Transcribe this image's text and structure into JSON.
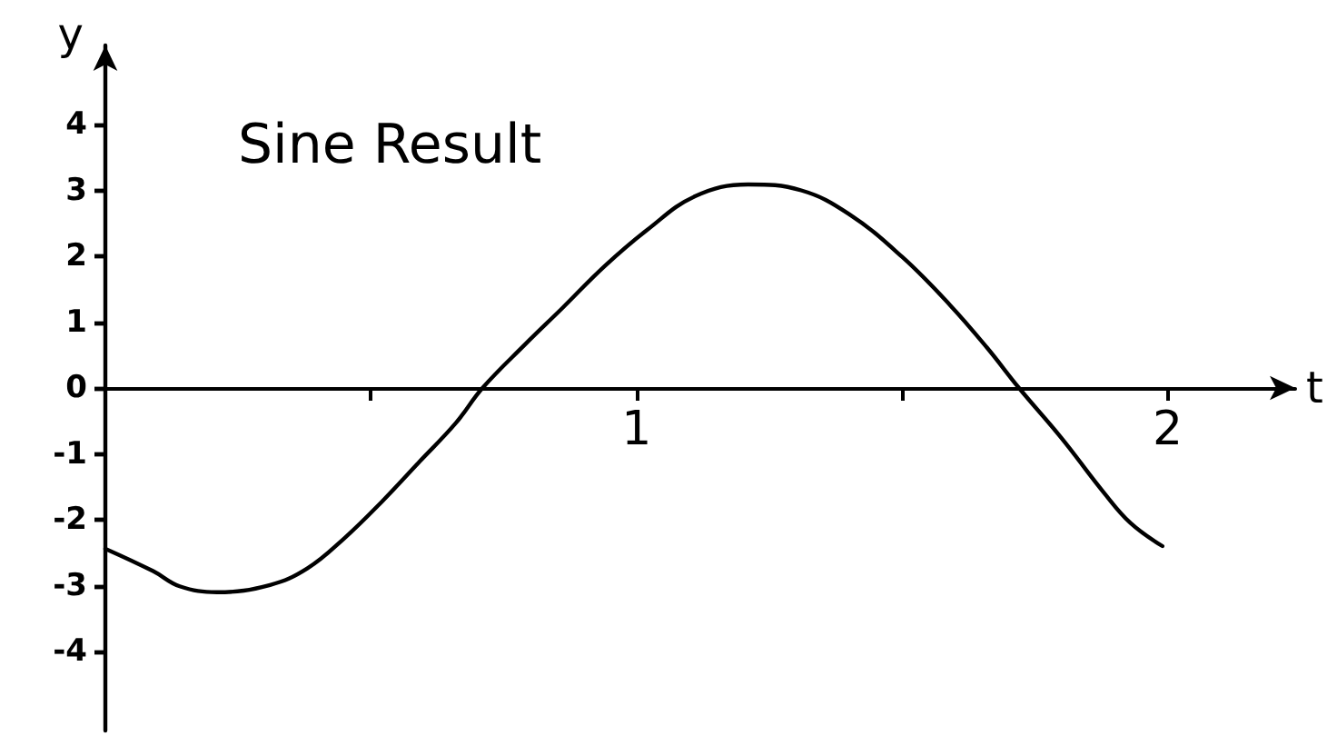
{
  "chart_data": {
    "type": "line",
    "title": "Sine Result",
    "xlabel": "t",
    "ylabel": "y",
    "x": [
      0,
      0.09,
      0.14,
      0.21,
      0.31,
      0.38,
      0.45,
      0.52,
      0.59,
      0.66,
      0.71,
      0.79,
      0.86,
      0.94,
      1.02,
      1.11,
      1.21,
      1.31,
      1.4,
      1.5,
      1.59,
      1.66,
      1.72,
      1.8,
      1.88,
      1.93,
      1.99
    ],
    "series": [
      {
        "color": "#000000",
        "values": [
          -2.44,
          -2.78,
          -3.01,
          -3.1,
          -2.99,
          -2.74,
          -2.28,
          -1.73,
          -1.13,
          -0.53,
          0,
          0.66,
          1.21,
          1.85,
          2.4,
          2.91,
          3.09,
          3.0,
          2.64,
          1.99,
          1.26,
          0.61,
          0,
          -0.76,
          -1.59,
          -2.05,
          -2.4
        ]
      }
    ],
    "xlim": [
      0,
      2.24
    ],
    "ylim": [
      -5.2,
      5.2
    ],
    "xticks": [
      {
        "value": 0.5,
        "label": null
      },
      1,
      {
        "value": 1.5,
        "label": null
      },
      2
    ],
    "yticks": [
      -4,
      -3,
      -2,
      -1,
      0,
      1,
      2,
      3,
      4
    ],
    "marker": "none",
    "line_style": "solid"
  }
}
